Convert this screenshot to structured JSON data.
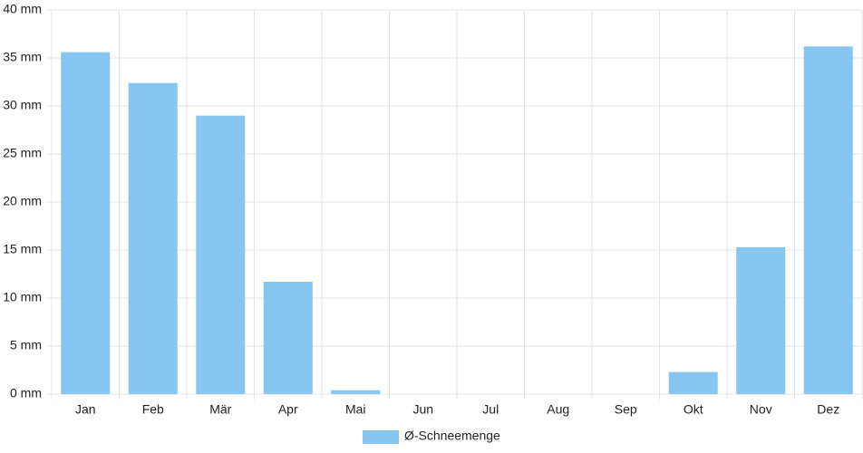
{
  "chart_data": {
    "type": "bar",
    "categories": [
      "Jan",
      "Feb",
      "Mär",
      "Apr",
      "Mai",
      "Jun",
      "Jul",
      "Aug",
      "Sep",
      "Okt",
      "Nov",
      "Dez"
    ],
    "series": [
      {
        "name": "Ø-Schneemenge",
        "color": "#88c6f2",
        "values": [
          35.6,
          32.4,
          29.0,
          11.7,
          0.4,
          0,
          0,
          0,
          0,
          2.3,
          15.3,
          36.2
        ]
      }
    ],
    "ylim": [
      0,
      40
    ],
    "yticks": [
      {
        "value": 0,
        "label": "0 mm"
      },
      {
        "value": 5,
        "label": "5 mm"
      },
      {
        "value": 10,
        "label": "10 mm"
      },
      {
        "value": 15,
        "label": "15 mm"
      },
      {
        "value": 20,
        "label": "20 mm"
      },
      {
        "value": 25,
        "label": "25 mm"
      },
      {
        "value": 30,
        "label": "30 mm"
      },
      {
        "value": 35,
        "label": "35 mm"
      },
      {
        "value": 40,
        "label": "40 mm"
      }
    ],
    "grid": true,
    "legend": "bottom"
  }
}
